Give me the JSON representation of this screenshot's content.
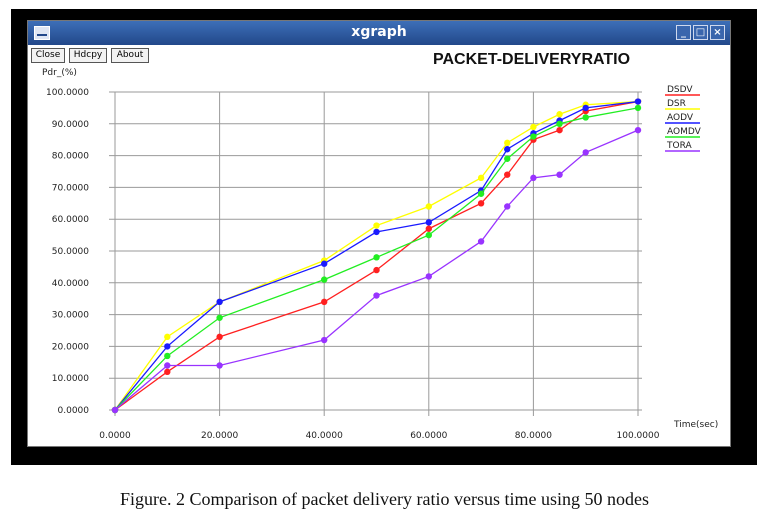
{
  "window": {
    "title": "xgraph",
    "buttons": [
      "Close",
      "Hdcpy",
      "About"
    ]
  },
  "chart_data": {
    "type": "line",
    "title": "PACKET-DELIVERYRATIO",
    "ylabel": "Pdr_(%)",
    "xlabel": "Time(sec)",
    "xlim": [
      0,
      100
    ],
    "ylim": [
      0,
      100
    ],
    "x_ticks": [
      "0.0000",
      "20.0000",
      "40.0000",
      "60.0000",
      "80.0000",
      "100.0000"
    ],
    "y_ticks": [
      "0.0000",
      "10.0000",
      "20.0000",
      "30.0000",
      "40.0000",
      "50.0000",
      "60.0000",
      "70.0000",
      "80.0000",
      "90.0000",
      "100.0000"
    ],
    "grid": true,
    "legend_position": "right",
    "series": [
      {
        "name": "DSDV",
        "color": "#ff2020",
        "x": [
          0,
          10,
          20,
          40,
          50,
          60,
          70,
          75,
          80,
          85,
          90,
          100
        ],
        "values": [
          0,
          12,
          23,
          34,
          44,
          57,
          65,
          74,
          85,
          88,
          94,
          97
        ]
      },
      {
        "name": "DSR",
        "color": "#ffff00",
        "x": [
          0,
          10,
          20,
          40,
          50,
          60,
          70,
          75,
          80,
          85,
          90,
          100
        ],
        "values": [
          0,
          23,
          34,
          47,
          58,
          64,
          73,
          84,
          89,
          93,
          96,
          97
        ]
      },
      {
        "name": "AODV",
        "color": "#1a1aff",
        "x": [
          0,
          10,
          20,
          40,
          50,
          60,
          70,
          75,
          80,
          85,
          90,
          100
        ],
        "values": [
          0,
          20,
          34,
          46,
          56,
          59,
          69,
          82,
          87,
          91,
          95,
          97
        ]
      },
      {
        "name": "AOMDV",
        "color": "#22ee22",
        "x": [
          0,
          10,
          20,
          40,
          50,
          60,
          70,
          75,
          80,
          85,
          90,
          100
        ],
        "values": [
          0,
          17,
          29,
          41,
          48,
          55,
          68,
          79,
          86,
          90,
          92,
          95
        ]
      },
      {
        "name": "TORA",
        "color": "#9933ff",
        "x": [
          0,
          10,
          20,
          40,
          50,
          60,
          70,
          75,
          80,
          85,
          90,
          100
        ],
        "values": [
          0,
          14,
          14,
          22,
          36,
          42,
          53,
          64,
          73,
          74,
          81,
          88
        ]
      }
    ]
  },
  "caption": "Figure. 2 Comparison of packet delivery ratio versus time using 50 nodes"
}
